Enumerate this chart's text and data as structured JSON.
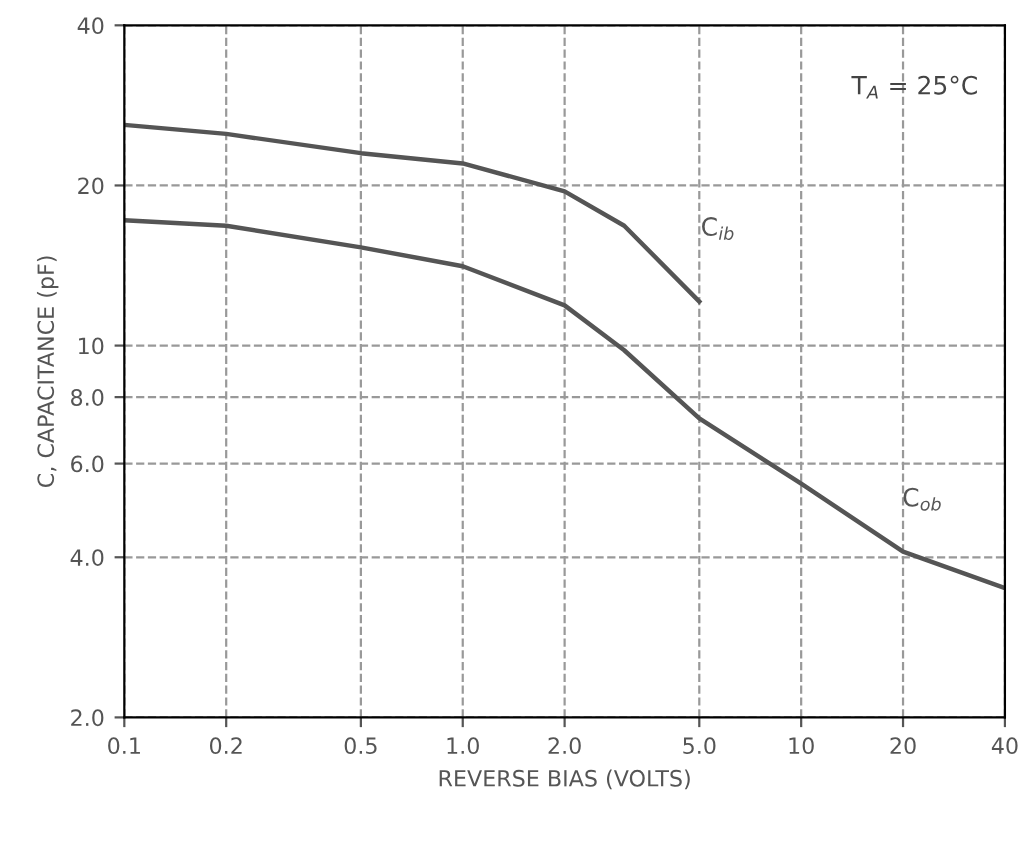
{
  "chart_data": {
    "type": "line",
    "log": "xy",
    "xlabel": "REVERSE BIAS (VOLTS)",
    "ylabel": "C, CAPACITANCE (pF)",
    "xlim": [
      0.1,
      40
    ],
    "ylim": [
      2,
      40
    ],
    "xticks": [
      {
        "value": 0.1,
        "label": "0.1"
      },
      {
        "value": 0.2,
        "label": "0.2"
      },
      {
        "value": 0.5,
        "label": "0.5"
      },
      {
        "value": 1,
        "label": "1.0"
      },
      {
        "value": 2,
        "label": "2.0"
      },
      {
        "value": 5,
        "label": "5.0"
      },
      10,
      20,
      40
    ],
    "yticks": [
      {
        "value": 2,
        "label": "2.0"
      },
      {
        "value": 4,
        "label": "4.0"
      },
      {
        "value": 6,
        "label": "6.0"
      },
      {
        "value": 8,
        "label": "8.0"
      },
      10,
      20,
      40
    ],
    "grid": true,
    "marker": "none",
    "line_style": "solid",
    "annotations": [
      "T$_{A}$ = 25°C"
    ],
    "series": [
      {
        "name": "C$_{ib}$",
        "color": "#555555",
        "x": [
          0.1,
          0.2,
          0.5,
          1,
          2,
          3,
          5
        ],
        "values": [
          26,
          25,
          23,
          22,
          19.5,
          16.8,
          12.1
        ]
      },
      {
        "name": "C$_{ob}$",
        "color": "#555555",
        "x": [
          0.1,
          0.2,
          0.5,
          1,
          2,
          3,
          5,
          10,
          20,
          40
        ],
        "values": [
          17.2,
          16.8,
          15.3,
          14.1,
          11.9,
          9.8,
          7.3,
          5.5,
          4.1,
          3.5
        ]
      }
    ]
  }
}
